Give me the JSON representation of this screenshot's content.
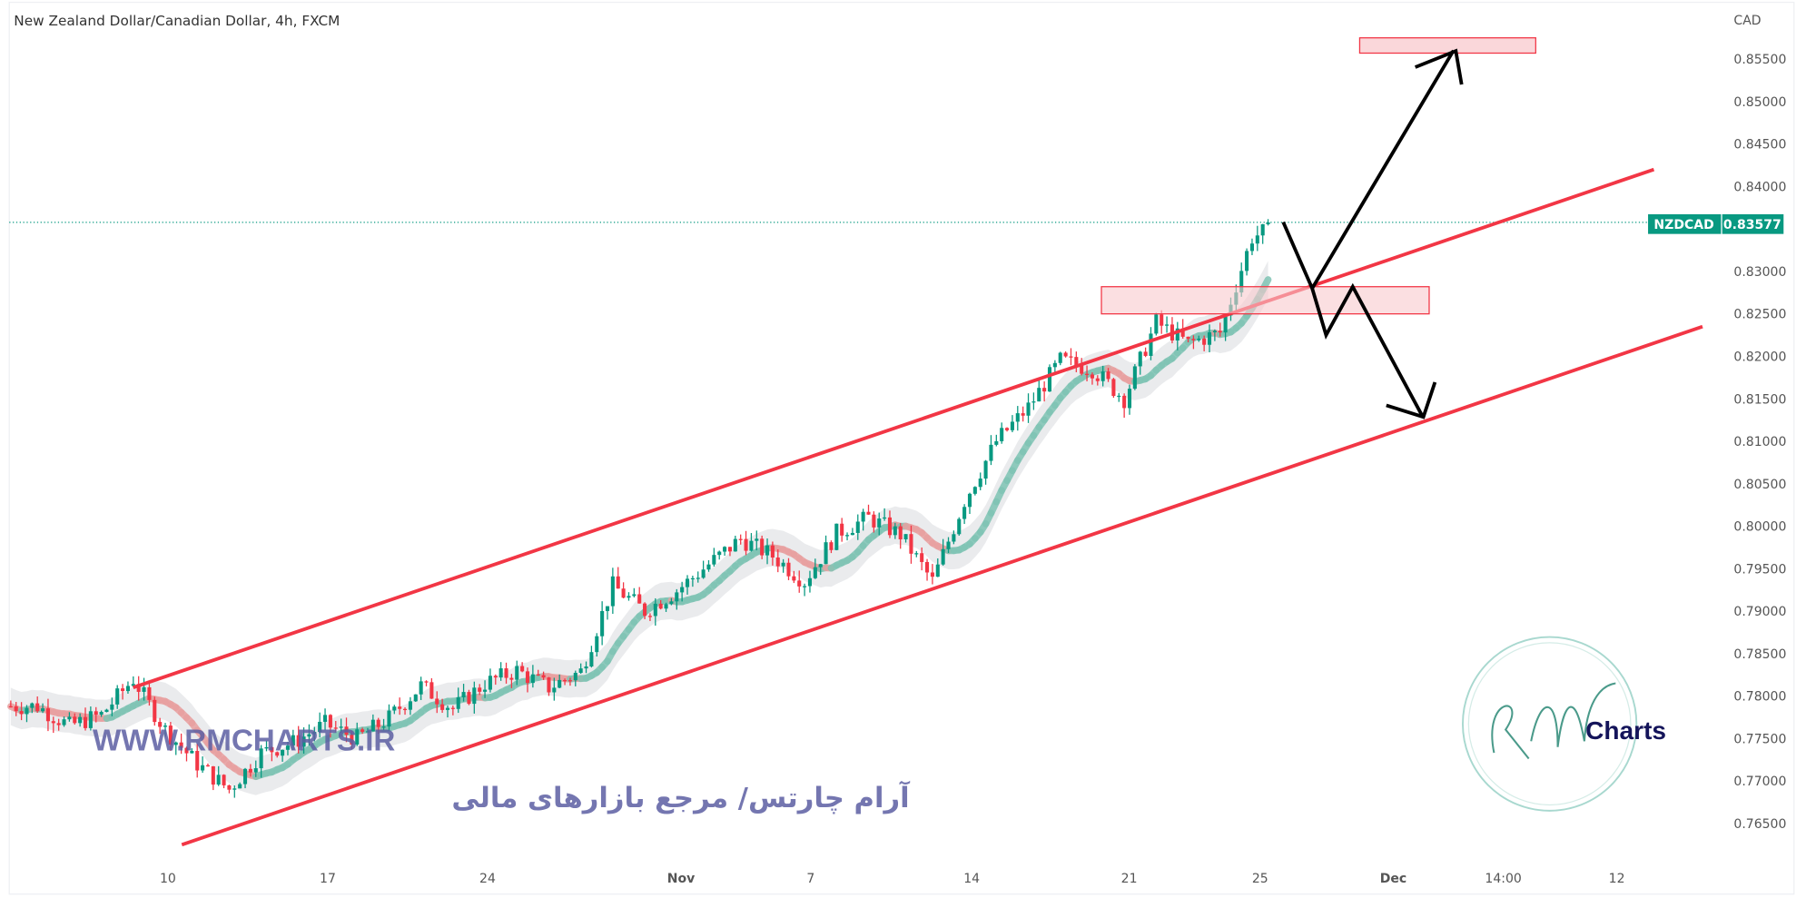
{
  "header": {
    "title": "New Zealand Dollar/Canadian Dollar, 4h, FXCM"
  },
  "price_axis": {
    "currency": "CAD",
    "ticks": [
      "0.85500",
      "0.85000",
      "0.84500",
      "0.84000",
      "0.83000",
      "0.82500",
      "0.82000",
      "0.81500",
      "0.81000",
      "0.80500",
      "0.80000",
      "0.79500",
      "0.79000",
      "0.78500",
      "0.78000",
      "0.77500",
      "0.77000",
      "0.76500"
    ]
  },
  "time_axis": {
    "ticks": [
      "10",
      "17",
      "24",
      "Nov",
      "7",
      "14",
      "21",
      "25",
      "Dec",
      "14:00",
      "12"
    ]
  },
  "last_price": {
    "symbol": "NZDCAD",
    "value": "0.83577",
    "color": "#089981"
  },
  "watermark": {
    "url": "WWW.RMCHARTS.IR",
    "tagline": "آرام چارتس/ مرجع بازارهای مالی",
    "logo_text": "Charts",
    "logo_letters": "RM"
  },
  "colors": {
    "up": "#089981",
    "down": "#f23645",
    "channel": "#f23645",
    "zone_fill": "#f8c9cd",
    "ma_up": "#7fc4b4",
    "ma_down": "#e8a0a0"
  },
  "chart_data": {
    "type": "candlestick",
    "title": "New Zealand Dollar/Canadian Dollar, 4h, FXCM",
    "ylabel": "CAD",
    "ylim": [
      0.762,
      0.859
    ],
    "grid": false,
    "approx_daily_closes": [
      [
        "Oct 3",
        0.7788
      ],
      [
        "Oct 4",
        0.7765
      ],
      [
        "Oct 5",
        0.7778
      ],
      [
        "Oct 6",
        0.782
      ],
      [
        "Oct 7",
        0.776
      ],
      [
        "Oct 10",
        0.772
      ],
      [
        "Oct 11",
        0.769
      ],
      [
        "Oct 12",
        0.7733
      ],
      [
        "Oct 13",
        0.7745
      ],
      [
        "Oct 14",
        0.7767
      ],
      [
        "Oct 17",
        0.775
      ],
      [
        "Oct 18",
        0.7774
      ],
      [
        "Oct 19",
        0.7812
      ],
      [
        "Oct 20",
        0.7785
      ],
      [
        "Oct 21",
        0.7815
      ],
      [
        "Oct 24",
        0.783
      ],
      [
        "Oct 25",
        0.781
      ],
      [
        "Oct 26",
        0.7829
      ],
      [
        "Oct 27",
        0.793
      ],
      [
        "Oct 28",
        0.79
      ],
      [
        "Oct 31",
        0.7924
      ],
      [
        "Nov 1",
        0.7955
      ],
      [
        "Nov 2",
        0.7985
      ],
      [
        "Nov 3",
        0.7965
      ],
      [
        "Nov 4",
        0.7935
      ],
      [
        "Nov 7",
        0.7992
      ],
      [
        "Nov 8",
        0.801
      ],
      [
        "Nov 9",
        0.799
      ],
      [
        "Nov 10",
        0.7935
      ],
      [
        "Nov 11",
        0.803
      ],
      [
        "Nov 14",
        0.81
      ],
      [
        "Nov 15",
        0.814
      ],
      [
        "Nov 16",
        0.8195
      ],
      [
        "Nov 17",
        0.8185
      ],
      [
        "Nov 18",
        0.815
      ],
      [
        "Nov 21",
        0.824
      ],
      [
        "Nov 22",
        0.8215
      ],
      [
        "Nov 23",
        0.8228
      ],
      [
        "Nov 24",
        0.834
      ],
      [
        "Nov 25",
        0.8358
      ]
    ],
    "last": 0.83577,
    "annotations": {
      "channel_upper": [
        [
          "Oct 7",
          0.781
        ],
        [
          "Dec 12",
          0.842
        ]
      ],
      "channel_lower": [
        [
          "Oct 11",
          0.7625
        ],
        [
          "Dec 14",
          0.8235
        ]
      ],
      "target_zone": [
        0.8557,
        0.8575
      ],
      "resistance_zone": [
        0.825,
        0.8282
      ],
      "scenario_bullish": [
        0.8358,
        0.828,
        0.856
      ],
      "scenario_bearish": [
        0.8358,
        0.828,
        0.8225,
        0.8282,
        0.813
      ]
    }
  }
}
